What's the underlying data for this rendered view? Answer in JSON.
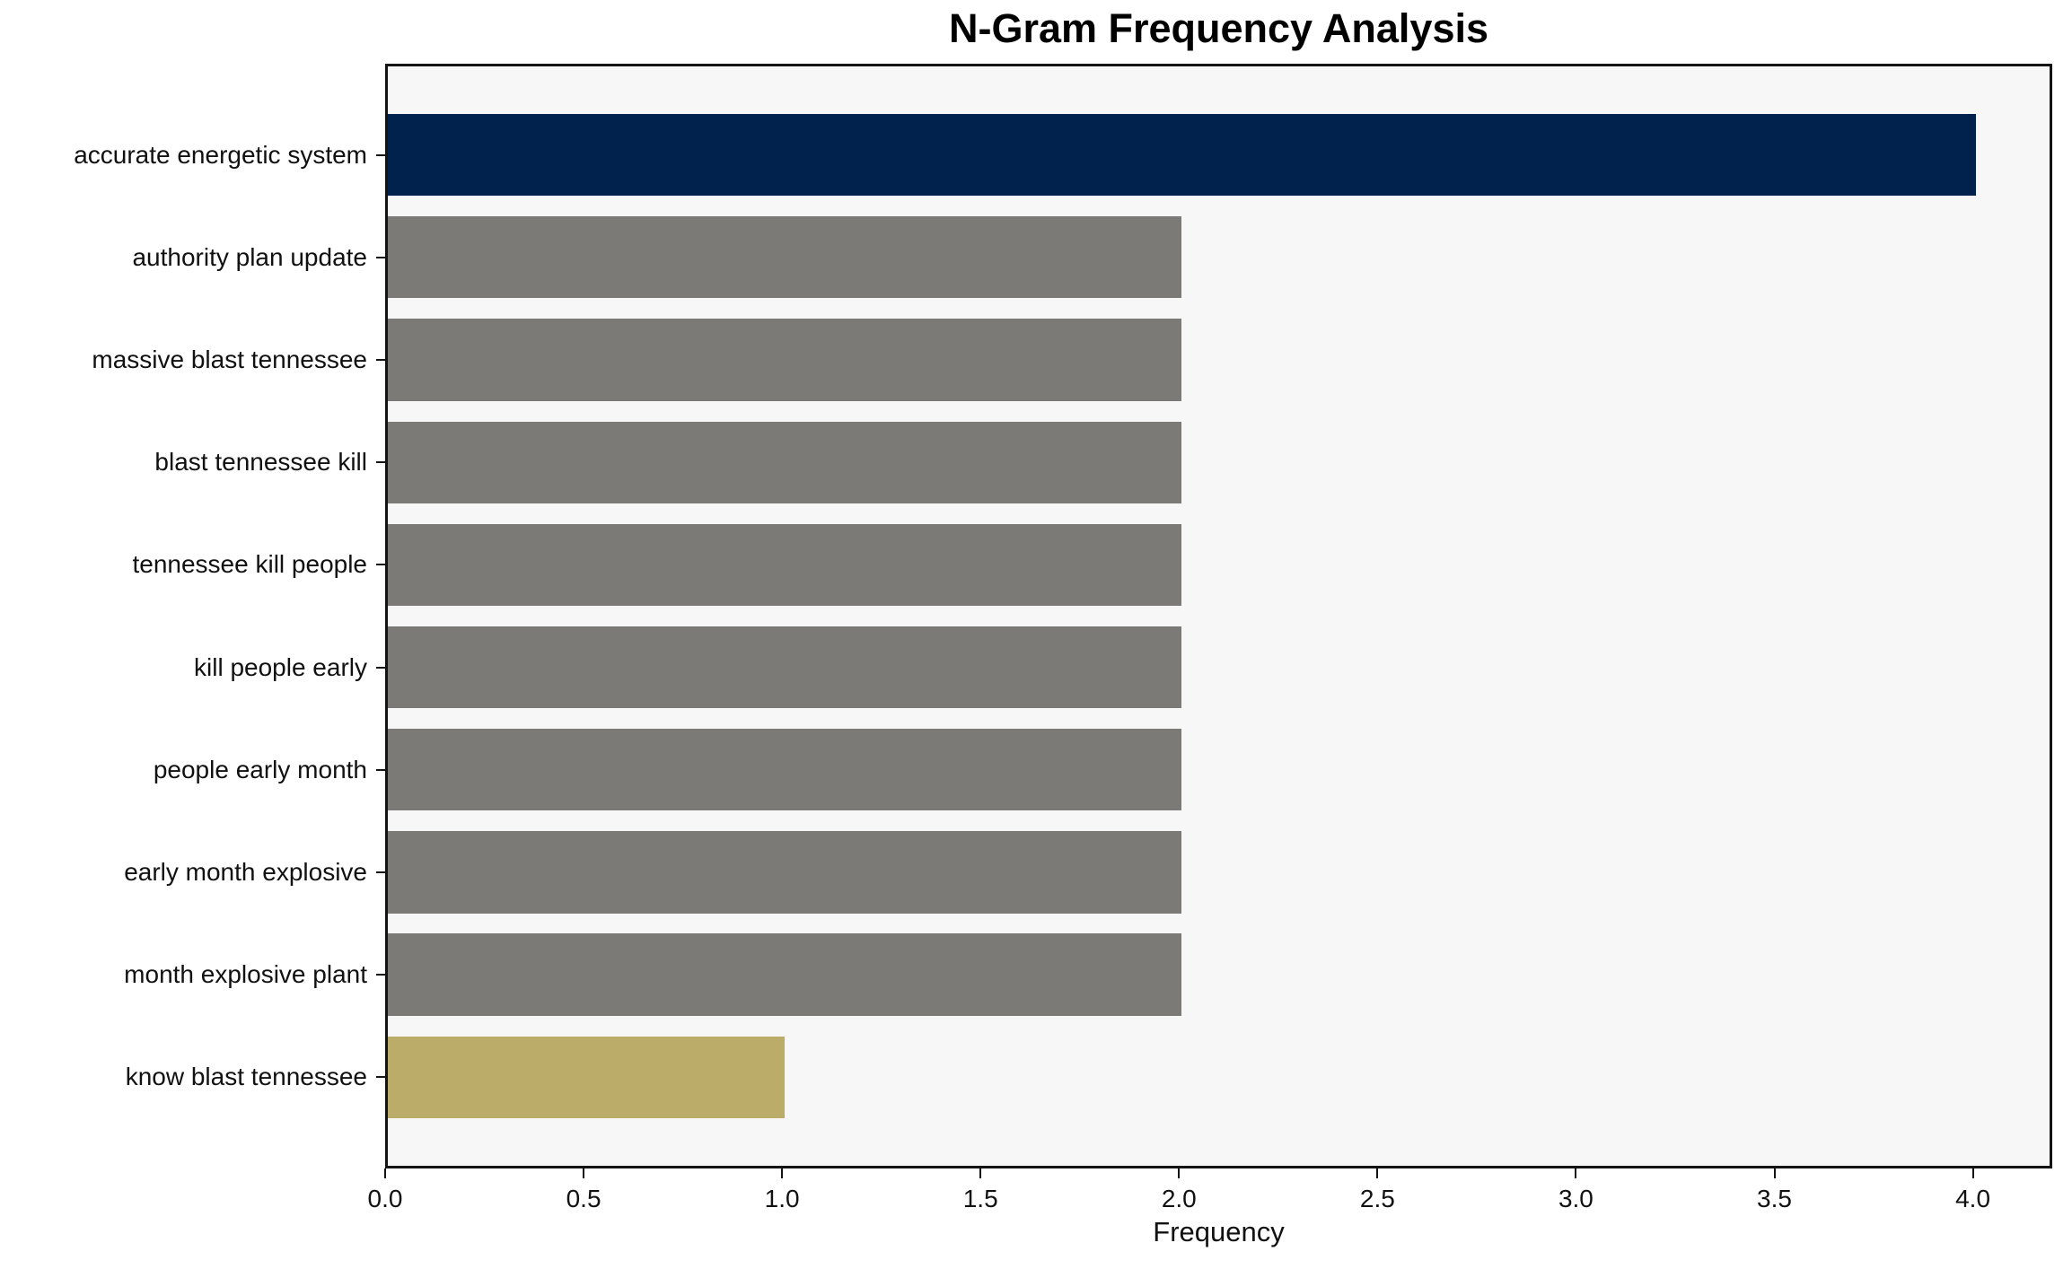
{
  "chart_data": {
    "type": "bar",
    "orientation": "horizontal",
    "title": "N-Gram Frequency Analysis",
    "xlabel": "Frequency",
    "ylabel": "",
    "categories": [
      "accurate energetic system",
      "authority plan update",
      "massive blast tennessee",
      "blast tennessee kill",
      "tennessee kill people",
      "kill people early",
      "people early month",
      "early month explosive",
      "month explosive plant",
      "know blast tennessee"
    ],
    "values": [
      4,
      2,
      2,
      2,
      2,
      2,
      2,
      2,
      2,
      1
    ],
    "bar_colors": [
      "#02224e",
      "#7b7a76",
      "#7b7a76",
      "#7b7a76",
      "#7b7a76",
      "#7b7a76",
      "#7b7a76",
      "#7b7a76",
      "#7b7a76",
      "#bcac6a"
    ],
    "xlim": [
      0,
      4.2
    ],
    "xticks": [
      0,
      0.5,
      1,
      1.5,
      2,
      2.5,
      3,
      3.5,
      4
    ],
    "xtick_labels": [
      "0.0",
      "0.5",
      "1.0",
      "1.5",
      "2.0",
      "2.5",
      "3.0",
      "3.5",
      "4.0"
    ],
    "grid": false,
    "legend": null,
    "colors": {
      "plot_background": "#f7f7f7",
      "figure_background": "#ffffff",
      "axis": "#141414",
      "text": "#111111"
    }
  }
}
